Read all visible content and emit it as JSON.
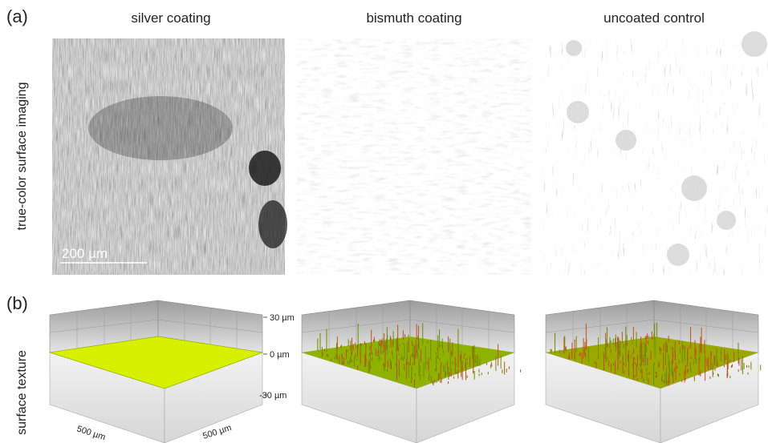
{
  "columns": [
    "silver coating",
    "bismuth coating",
    "uncoated control"
  ],
  "panel_a": {
    "label": "(a)",
    "row_label": "true-color surface imaging",
    "scale_bar": "200 µm"
  },
  "panel_b": {
    "label": "(b)",
    "row_label": "surface texture",
    "z_top": "30 µm",
    "z_mid": "0 µm",
    "z_bottom": "-30 µm",
    "x_axis_label": "500 µm",
    "y_axis_label": "500 µm"
  }
}
